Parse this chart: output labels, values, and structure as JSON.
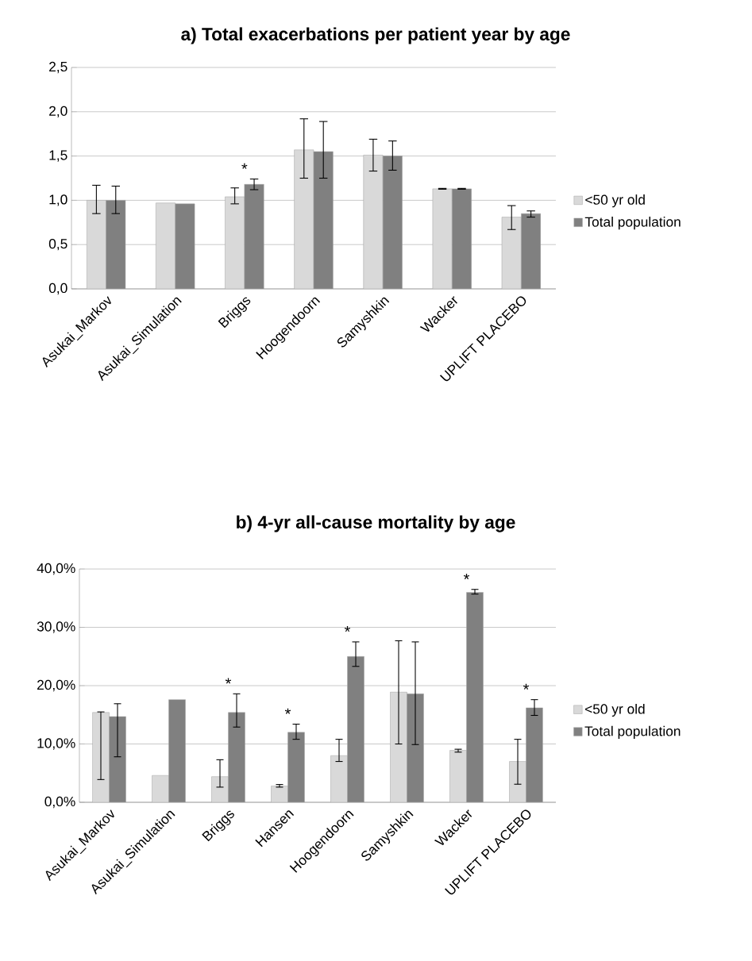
{
  "chart_data": [
    {
      "type": "bar",
      "title": "a) Total exacerbations per patient year by age",
      "categories": [
        "Asukai_Markov",
        "Asukai_Simulation",
        "Briggs",
        "Hoogendoorn",
        "Samyshkin",
        "Wacker",
        "UPLIFT PLACEBO"
      ],
      "series": [
        {
          "name": "<50 yr old",
          "color": "#d9d9d9",
          "values": [
            1.0,
            0.97,
            1.04,
            1.57,
            1.51,
            1.13,
            0.81
          ],
          "errors": [
            [
              0.85,
              1.17
            ],
            null,
            [
              0.96,
              1.14
            ],
            [
              1.25,
              1.92
            ],
            [
              1.33,
              1.69
            ],
            [
              1.125,
              1.135
            ],
            [
              0.67,
              0.94
            ]
          ]
        },
        {
          "name": "Total population",
          "color": "#808080",
          "values": [
            1.0,
            0.96,
            1.18,
            1.55,
            1.5,
            1.13,
            0.85
          ],
          "errors": [
            [
              0.85,
              1.16
            ],
            null,
            [
              1.12,
              1.24
            ],
            [
              1.25,
              1.89
            ],
            [
              1.34,
              1.67
            ],
            [
              1.125,
              1.135
            ],
            [
              0.81,
              0.88
            ]
          ]
        }
      ],
      "ylim": [
        0,
        2.5
      ],
      "yticks": [
        {
          "value": 0,
          "label": "0,0"
        },
        {
          "value": 0.5,
          "label": "0,5"
        },
        {
          "value": 1.0,
          "label": "1,0"
        },
        {
          "value": 1.5,
          "label": "1,5"
        },
        {
          "value": 2.0,
          "label": "2,0"
        },
        {
          "value": 2.5,
          "label": "2,5"
        }
      ],
      "grid": "y",
      "legend": "right",
      "annotations": [
        "*"
      ]
    },
    {
      "type": "bar",
      "title": "b) 4-yr all-cause mortality by age",
      "categories": [
        "Asukai_Markov",
        "Asukai_Simulation",
        "Briggs",
        "Hansen",
        "Hoogendoorn",
        "Samyshkin",
        "Wacker",
        "UPLIFT PLACEBO"
      ],
      "series": [
        {
          "name": "<50 yr old",
          "color": "#d9d9d9",
          "values": [
            15.4,
            4.6,
            4.4,
            2.8,
            8.0,
            18.9,
            8.9,
            7.0
          ],
          "errors": [
            [
              3.9,
              15.5
            ],
            null,
            [
              2.6,
              7.3
            ],
            [
              2.6,
              3.05
            ],
            [
              7.0,
              10.8
            ],
            [
              10.0,
              27.7
            ],
            [
              8.6,
              9.1
            ],
            [
              3.1,
              10.8
            ]
          ]
        },
        {
          "name": "Total population",
          "color": "#808080",
          "values": [
            14.7,
            17.6,
            15.4,
            12.0,
            25.0,
            18.6,
            36.0,
            16.2
          ],
          "errors": [
            [
              7.8,
              16.9
            ],
            null,
            [
              12.9,
              18.6
            ],
            [
              10.8,
              13.4
            ],
            [
              23.3,
              27.5
            ],
            [
              9.9,
              27.5
            ],
            [
              35.7,
              36.5
            ],
            [
              14.9,
              17.6
            ]
          ]
        }
      ],
      "ylim": [
        0,
        40
      ],
      "yticks": [
        {
          "value": 0,
          "label": "0,0%"
        },
        {
          "value": 10,
          "label": "10,0%"
        },
        {
          "value": 20,
          "label": "20,0%"
        },
        {
          "value": 30,
          "label": "30,0%"
        },
        {
          "value": 40,
          "label": "40,0%"
        }
      ],
      "grid": "y",
      "legend": "right",
      "annotations": [
        "*",
        "*",
        "*",
        "*",
        "*"
      ]
    }
  ]
}
